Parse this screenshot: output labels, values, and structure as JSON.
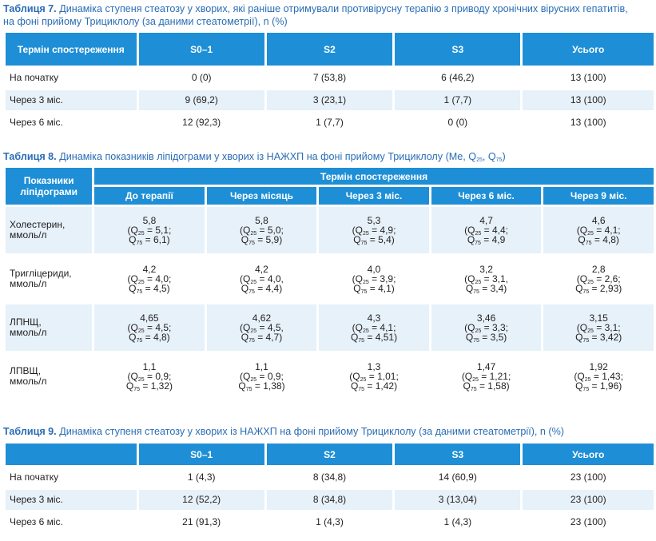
{
  "table7": {
    "caption_num": "Таблиця 7.",
    "caption_text": "Динаміка ступеня стеатозу у хворих, які раніше отримували противірусну терапію з приводу хронічних вірусних гепатитів, на фоні прийому Трициклолу (за даними стеатометрії), n (%)",
    "headers": [
      "Термін спостереження",
      "S0–1",
      "S2",
      "S3",
      "Усього"
    ],
    "rows": [
      [
        "На початку",
        "0 (0)",
        "7 (53,8)",
        "6 (46,2)",
        "13 (100)"
      ],
      [
        "Через 3 міс.",
        "9 (69,2)",
        "3 (23,1)",
        "1 (7,7)",
        "13 (100)"
      ],
      [
        "Через 6 міс.",
        "12 (92,3)",
        "1 (7,7)",
        "0 (0)",
        "13 (100)"
      ]
    ]
  },
  "table8": {
    "caption_num": "Таблиця 8.",
    "caption_text": "Динаміка показників ліпідограми у хворих із НАЖХП на фоні прийому Трициклолу (Me, Q",
    "caption_sub1": "25",
    "caption_mid": ", Q",
    "caption_sub2": "75",
    "caption_end": ")",
    "row_header": "Показники ліпідограми",
    "group_header": "Термін спостереження",
    "col_headers": [
      "До терапії",
      "Через місяць",
      "Через 3 міс.",
      "Через 6 міс.",
      "Через 9 міс."
    ],
    "q_open": "(Q",
    "q25_sub": "25",
    "q_mid": "Q",
    "q75_sub": "75",
    "rows": [
      {
        "label1": "Холестерин,",
        "label2": "ммоль/л",
        "cells": [
          {
            "me": "5,8",
            "q25": " = 5,1;",
            "q75": " = 6,1)"
          },
          {
            "me": "5,8",
            "q25": " = 5,0;",
            "q75": " = 5,9)"
          },
          {
            "me": "5,3",
            "q25": " = 4,9;",
            "q75": " = 5,4)"
          },
          {
            "me": "4,7",
            "q25": " = 4,4;",
            "q75": " = 4,9"
          },
          {
            "me": "4,6",
            "q25": " = 4,1;",
            "q75": " = 4,8)"
          }
        ]
      },
      {
        "label1": "Тригліцериди,",
        "label2": "ммоль/л",
        "cells": [
          {
            "me": "4,2",
            "q25": " = 4,0;",
            "q75": " = 4,5)"
          },
          {
            "me": "4,2",
            "q25": " = 4,0,",
            "q75": " = 4,4)"
          },
          {
            "me": "4,0",
            "q25": " = 3,9;",
            "q75": " = 4,1)"
          },
          {
            "me": "3,2",
            "q25": " = 3,1,",
            "q75": " = 3,4)"
          },
          {
            "me": "2,8",
            "q25": " = 2,6;",
            "q75": " = 2,93)"
          }
        ]
      },
      {
        "label1": "ЛПНЩ,",
        "label2": "ммоль/л",
        "cells": [
          {
            "me": "4,65",
            "q25": " = 4,5;",
            "q75": " = 4,8)"
          },
          {
            "me": "4,62",
            "q25": " = 4,5,",
            "q75": " = 4,7)"
          },
          {
            "me": "4,3",
            "q25": " = 4,1;",
            "q75": " = 4,51)"
          },
          {
            "me": "3,46",
            "q25": " = 3,3;",
            "q75": " = 3,5)"
          },
          {
            "me": "3,15",
            "q25": " = 3,1;",
            "q75": " = 3,42)"
          }
        ]
      },
      {
        "label1": "ЛПВЩ,",
        "label2": "ммоль/л",
        "cells": [
          {
            "me": "1,1",
            "q25": " = 0,9;",
            "q75": " = 1,32)"
          },
          {
            "me": "1,1",
            "q25": " = 0,9;",
            "q75": " = 1,38)"
          },
          {
            "me": "1,3",
            "q25": " = 1,01;",
            "q75": " = 1,42)"
          },
          {
            "me": "1,47",
            "q25": " = 1,21;",
            "q75": " = 1,58)"
          },
          {
            "me": "1,92",
            "q25": " = 1,43;",
            "q75": " = 1,96)"
          }
        ]
      }
    ]
  },
  "table9": {
    "caption_num": "Таблиця 9.",
    "caption_text": "Динаміка ступеня стеатозу у хворих із НАЖХП на фоні прийому Трициклолу (за даними стеатометрії), n (%)",
    "headers": [
      "",
      "S0–1",
      "S2",
      "S3",
      "Усього"
    ],
    "rows": [
      [
        "На початку",
        "1 (4,3)",
        "8 (34,8)",
        "14 (60,9)",
        "23 (100)"
      ],
      [
        "Через 3 міс.",
        "12 (52,2)",
        "8 (34,8)",
        "3 (13,04)",
        "23 (100)"
      ],
      [
        "Через 6 міс.",
        "21 (91,3)",
        "1 (4,3)",
        "1 (4,3)",
        "23 (100)"
      ]
    ]
  }
}
